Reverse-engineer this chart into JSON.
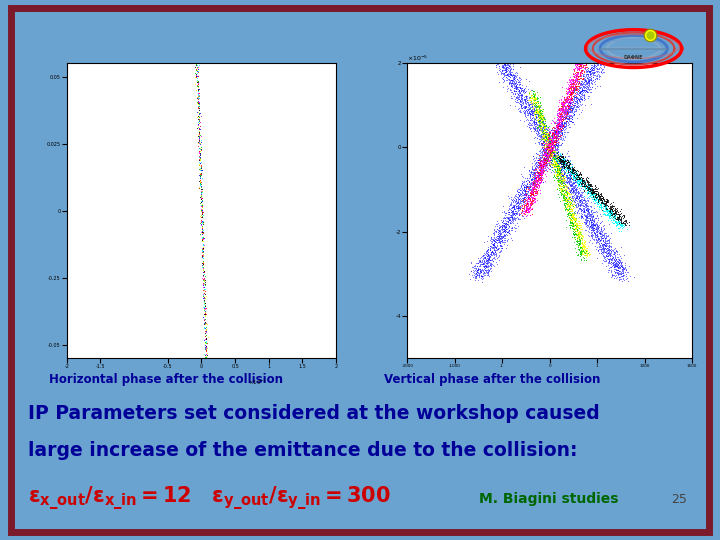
{
  "background_outer": "#6ba3d0",
  "background_inner": "#ffffff",
  "border_color": "#7b1a2a",
  "border_width": 5,
  "label_horiz": "Horizontal phase after the collision",
  "label_vert": "Vertical phase after the collision",
  "label_color": "#000099",
  "label_fontsize": 8.5,
  "title_line1": "IP Parameters set considered at the workshop caused",
  "title_line2": "large increase of the emittance due to the collision:",
  "title_color": "#000099",
  "title_fontsize": 13.5,
  "formula_color": "#cc0000",
  "formula_fontsize": 15,
  "biagini_text": "M. Biagini studies",
  "biagini_color": "#006600",
  "biagini_fontsize": 10,
  "page_number": "25",
  "page_color": "#444444",
  "page_fontsize": 9,
  "plot_bg": "#c8c8c8",
  "plot_inner_bg": "#ffffff"
}
